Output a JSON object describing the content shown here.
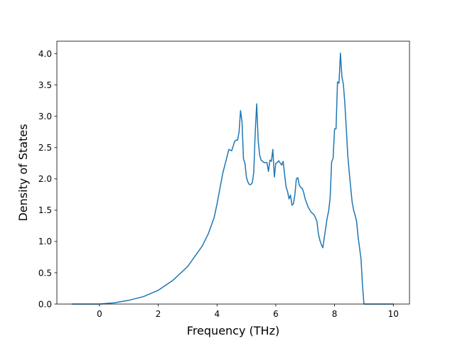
{
  "chart_data": {
    "type": "line",
    "title": "",
    "xlabel": "Frequency (THz)",
    "ylabel": "Density of States",
    "xlim": [
      -1.45,
      10.55
    ],
    "ylim": [
      0.0,
      4.2
    ],
    "xticks": [
      0,
      2,
      4,
      6,
      8,
      10
    ],
    "yticks": [
      0.0,
      0.5,
      1.0,
      1.5,
      2.0,
      2.5,
      3.0,
      3.5,
      4.0
    ],
    "xtick_labels": [
      "0",
      "2",
      "4",
      "6",
      "8",
      "10"
    ],
    "ytick_labels": [
      "0.0",
      "0.5",
      "1.0",
      "1.5",
      "2.0",
      "2.5",
      "3.0",
      "3.5",
      "4.0"
    ],
    "grid": false,
    "legend": "none",
    "series": [
      {
        "color": "#1f77b4",
        "x": [
          -0.93,
          0.0,
          0.5,
          1.0,
          1.5,
          2.0,
          2.5,
          3.0,
          3.5,
          3.7,
          3.9,
          4.0,
          4.1,
          4.2,
          4.3,
          4.4,
          4.5,
          4.6,
          4.65,
          4.7,
          4.75,
          4.8,
          4.85,
          4.9,
          4.95,
          5.0,
          5.05,
          5.1,
          5.15,
          5.2,
          5.25,
          5.3,
          5.35,
          5.4,
          5.45,
          5.5,
          5.6,
          5.7,
          5.75,
          5.8,
          5.85,
          5.9,
          5.95,
          6.0,
          6.05,
          6.1,
          6.2,
          6.25,
          6.3,
          6.35,
          6.4,
          6.45,
          6.5,
          6.55,
          6.6,
          6.65,
          6.7,
          6.75,
          6.8,
          6.85,
          6.9,
          6.95,
          7.0,
          7.1,
          7.2,
          7.3,
          7.35,
          7.4,
          7.45,
          7.5,
          7.55,
          7.6,
          7.65,
          7.7,
          7.75,
          7.8,
          7.85,
          7.9,
          7.95,
          8.0,
          8.05,
          8.1,
          8.15,
          8.2,
          8.25,
          8.3,
          8.35,
          8.4,
          8.45,
          8.5,
          8.55,
          8.6,
          8.65,
          8.7,
          8.75,
          8.8,
          8.85,
          8.9,
          8.95,
          9.0,
          9.05,
          9.1,
          9.15,
          9.2,
          9.5,
          10.0
        ],
        "y": [
          0.0,
          0.0,
          0.02,
          0.06,
          0.12,
          0.22,
          0.38,
          0.6,
          0.93,
          1.12,
          1.38,
          1.6,
          1.85,
          2.1,
          2.28,
          2.47,
          2.45,
          2.6,
          2.62,
          2.62,
          2.75,
          3.09,
          2.92,
          2.32,
          2.25,
          2.03,
          1.95,
          1.91,
          1.91,
          1.94,
          2.1,
          2.75,
          3.2,
          2.62,
          2.38,
          2.3,
          2.26,
          2.26,
          2.12,
          2.3,
          2.28,
          2.47,
          2.03,
          2.25,
          2.26,
          2.29,
          2.22,
          2.28,
          2.07,
          1.87,
          1.8,
          1.68,
          1.74,
          1.58,
          1.6,
          1.75,
          2.0,
          2.02,
          1.9,
          1.86,
          1.85,
          1.78,
          1.68,
          1.55,
          1.47,
          1.43,
          1.38,
          1.32,
          1.12,
          1.02,
          0.95,
          0.9,
          1.06,
          1.22,
          1.38,
          1.49,
          1.7,
          2.27,
          2.33,
          2.8,
          2.8,
          3.55,
          3.53,
          4.01,
          3.63,
          3.51,
          3.2,
          2.8,
          2.37,
          2.1,
          1.86,
          1.62,
          1.5,
          1.42,
          1.32,
          1.08,
          0.9,
          0.72,
          0.3,
          0.0,
          0.0,
          0.0,
          0.0,
          0.0,
          0.0,
          0.0
        ]
      }
    ]
  }
}
